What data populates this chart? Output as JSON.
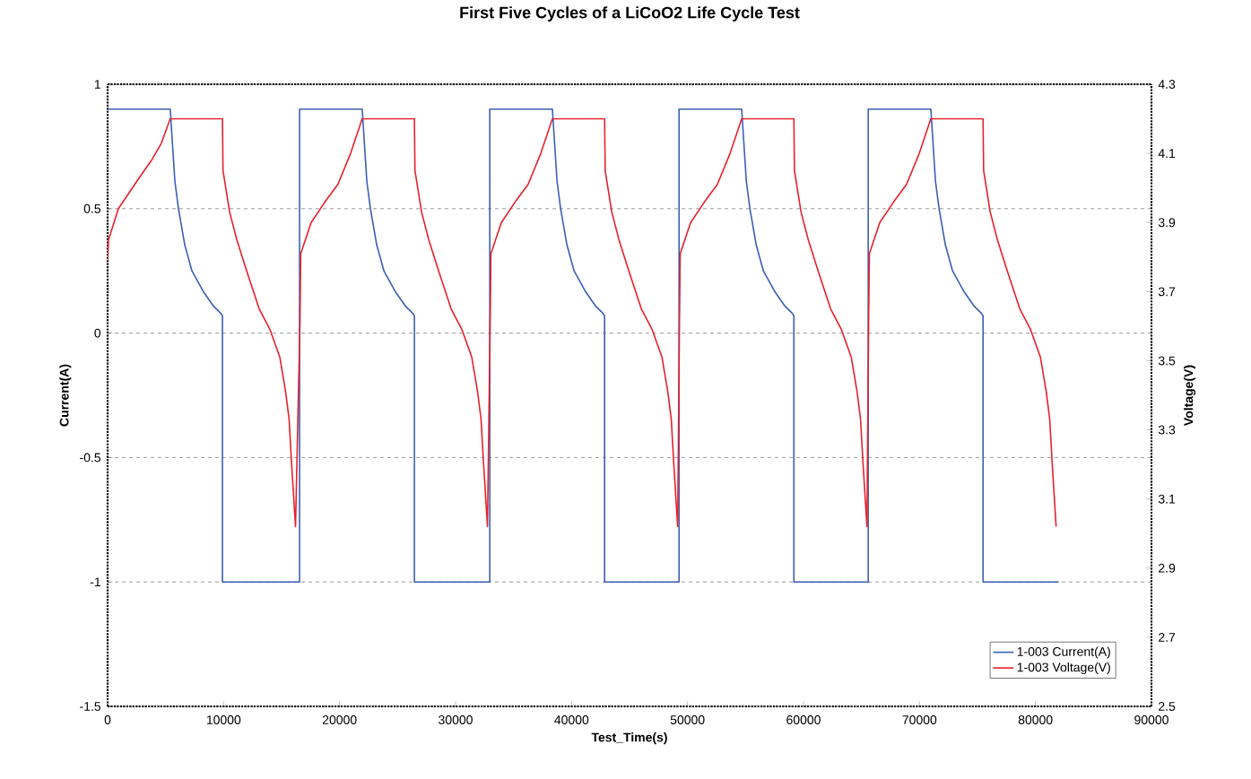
{
  "chart_data": {
    "type": "line",
    "title": "First Five Cycles of a LiCoO2 Life Cycle Test",
    "xlabel": "Test_Time(s)",
    "ylabel": "Current(A)",
    "y2label": "Voltage(V)",
    "xlim": [
      0,
      90000
    ],
    "xticks": [
      0,
      10000,
      20000,
      30000,
      40000,
      50000,
      60000,
      70000,
      80000,
      90000
    ],
    "ylim": [
      -1.5,
      1
    ],
    "yticks": [
      -1.5,
      -1,
      -0.5,
      0,
      0.5,
      1
    ],
    "y2lim": [
      2.5,
      4.3
    ],
    "y2ticks": [
      2.5,
      2.7,
      2.9,
      3.1,
      3.3,
      3.5,
      3.7,
      3.9,
      4.1,
      4.3
    ],
    "grid": "y",
    "legend": "bottom right",
    "series": [
      {
        "name": "1-003 Current(A)",
        "color": "#3a5fb5",
        "axis": "y",
        "x": [
          0,
          5400,
          5800,
          6110,
          6650,
          7270,
          8280,
          9100,
          9750,
          9900,
          9900,
          16550,
          16550,
          21950,
          22350,
          22660,
          23200,
          23820,
          24830,
          25650,
          26300,
          26450,
          26450,
          32950,
          32950,
          38350,
          38750,
          39060,
          39600,
          40220,
          41230,
          42050,
          42700,
          42850,
          42850,
          49270,
          49270,
          54670,
          55070,
          55380,
          55920,
          56540,
          57550,
          58370,
          59020,
          59170,
          59170,
          65580,
          65580,
          70980,
          71380,
          71690,
          72230,
          72850,
          73860,
          74680,
          75330,
          75480,
          75480,
          82000
        ],
        "values": [
          0.9,
          0.9,
          0.61,
          0.5,
          0.355,
          0.25,
          0.165,
          0.11,
          0.08,
          0.07,
          -1,
          -1,
          0.9,
          0.9,
          0.61,
          0.5,
          0.355,
          0.25,
          0.165,
          0.11,
          0.08,
          0.07,
          -1,
          -1,
          0.9,
          0.9,
          0.61,
          0.5,
          0.355,
          0.25,
          0.165,
          0.11,
          0.08,
          0.07,
          -1,
          -1,
          0.9,
          0.9,
          0.61,
          0.5,
          0.355,
          0.25,
          0.165,
          0.11,
          0.08,
          0.07,
          -1,
          -1,
          0.9,
          0.9,
          0.61,
          0.5,
          0.355,
          0.25,
          0.165,
          0.11,
          0.08,
          0.07,
          -1,
          -1
        ]
      },
      {
        "name": "1-003 Voltage(V)",
        "color": "#e8202a",
        "axis": "y2",
        "x": [
          0,
          80,
          930,
          1930,
          2940,
          3790,
          4640,
          5400,
          9900,
          9950,
          10520,
          11140,
          11990,
          13070,
          14000,
          14850,
          15350,
          15650,
          15850,
          16200,
          16580,
          16650,
          17550,
          18750,
          19850,
          20950,
          21950,
          26450,
          26500,
          27070,
          27690,
          28540,
          29620,
          30550,
          31400,
          31900,
          32200,
          32400,
          32750,
          32980,
          33050,
          33950,
          35150,
          36250,
          37350,
          38350,
          42850,
          42900,
          43470,
          44090,
          44940,
          46020,
          46950,
          47800,
          48300,
          48600,
          48800,
          49150,
          49300,
          49370,
          50270,
          51470,
          52570,
          53670,
          54670,
          59170,
          59220,
          59790,
          60410,
          61260,
          62340,
          63270,
          64120,
          64620,
          64920,
          65120,
          65470,
          65610,
          65680,
          66580,
          67780,
          68880,
          69980,
          70980,
          75480,
          75530,
          76100,
          76720,
          77570,
          78650,
          79580,
          80430,
          80930,
          81230,
          81430,
          81780
        ],
        "values": [
          3.79,
          3.85,
          3.94,
          3.99,
          4.04,
          4.08,
          4.13,
          4.2,
          4.2,
          4.05,
          3.93,
          3.85,
          3.76,
          3.65,
          3.59,
          3.51,
          3.41,
          3.33,
          3.21,
          3.02,
          3.6,
          3.81,
          3.9,
          3.96,
          4.01,
          4.1,
          4.2,
          4.2,
          4.05,
          3.93,
          3.85,
          3.76,
          3.65,
          3.59,
          3.51,
          3.41,
          3.33,
          3.21,
          3.02,
          3.6,
          3.81,
          3.9,
          3.96,
          4.01,
          4.1,
          4.2,
          4.2,
          4.05,
          3.93,
          3.85,
          3.76,
          3.65,
          3.59,
          3.51,
          3.41,
          3.33,
          3.21,
          3.02,
          3.6,
          3.81,
          3.9,
          3.96,
          4.01,
          4.1,
          4.2,
          4.2,
          4.05,
          3.93,
          3.85,
          3.76,
          3.65,
          3.59,
          3.51,
          3.41,
          3.33,
          3.21,
          3.02,
          3.6,
          3.81,
          3.9,
          3.96,
          4.01,
          4.1,
          4.2,
          4.2,
          4.05,
          3.93,
          3.85,
          3.76,
          3.65,
          3.59,
          3.51,
          3.41,
          3.33,
          3.21,
          3.02
        ]
      }
    ]
  }
}
